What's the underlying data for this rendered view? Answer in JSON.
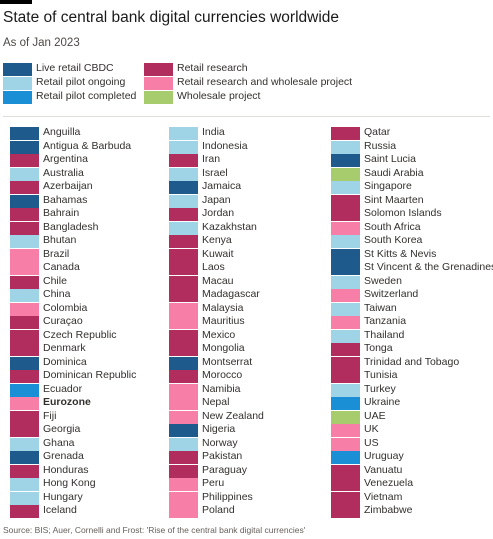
{
  "title": "State of central bank digital currencies worldwide",
  "subtitle": "As of Jan 2023",
  "source": "Source: BIS; Auer, Cornelli and Frost: 'Rise of the central bank digital currencies'",
  "colors": {
    "live": "#1f5a8c",
    "pilot_ongoing": "#9fd4e6",
    "pilot_completed": "#1a8fd6",
    "research": "#b02d5e",
    "research_wholesale": "#f77ea7",
    "wholesale": "#a6cc6e"
  },
  "legend": [
    {
      "label": "Live retail CBDC",
      "status": "live"
    },
    {
      "label": "Retail pilot ongoing",
      "status": "pilot_ongoing"
    },
    {
      "label": "Retail pilot completed",
      "status": "pilot_completed"
    },
    {
      "label": "Retail research",
      "status": "research"
    },
    {
      "label": "Retail research and wholesale project",
      "status": "research_wholesale"
    },
    {
      "label": "Wholesale project",
      "status": "wholesale"
    }
  ],
  "chart_data": {
    "type": "table",
    "title": "State of central bank digital currencies worldwide",
    "columns": [
      [
        {
          "name": "Anguilla",
          "status": "live"
        },
        {
          "name": "Antigua & Barbuda",
          "status": "live"
        },
        {
          "name": "Argentina",
          "status": "research"
        },
        {
          "name": "Australia",
          "status": "pilot_ongoing"
        },
        {
          "name": "Azerbaijan",
          "status": "research"
        },
        {
          "name": "Bahamas",
          "status": "live"
        },
        {
          "name": "Bahrain",
          "status": "research"
        },
        {
          "name": "Bangladesh",
          "status": "research"
        },
        {
          "name": "Bhutan",
          "status": "pilot_ongoing"
        },
        {
          "name": "Brazil",
          "status": "research_wholesale"
        },
        {
          "name": "Canada",
          "status": "research_wholesale"
        },
        {
          "name": "Chile",
          "status": "research"
        },
        {
          "name": "China",
          "status": "pilot_ongoing"
        },
        {
          "name": "Colombia",
          "status": "research_wholesale"
        },
        {
          "name": "Curaçao",
          "status": "research"
        },
        {
          "name": "Czech Republic",
          "status": "research"
        },
        {
          "name": "Denmark",
          "status": "research"
        },
        {
          "name": "Dominica",
          "status": "live"
        },
        {
          "name": "Dominican Republic",
          "status": "research"
        },
        {
          "name": "Ecuador",
          "status": "pilot_completed"
        },
        {
          "name": "Eurozone",
          "status": "research_wholesale",
          "bold": true
        },
        {
          "name": "Fiji",
          "status": "research"
        },
        {
          "name": "Georgia",
          "status": "research"
        },
        {
          "name": "Ghana",
          "status": "pilot_ongoing"
        },
        {
          "name": "Grenada",
          "status": "live"
        },
        {
          "name": "Honduras",
          "status": "research"
        },
        {
          "name": "Hong Kong",
          "status": "pilot_ongoing"
        },
        {
          "name": "Hungary",
          "status": "pilot_ongoing"
        },
        {
          "name": "Iceland",
          "status": "research"
        }
      ],
      [
        {
          "name": "India",
          "status": "pilot_ongoing"
        },
        {
          "name": "Indonesia",
          "status": "pilot_ongoing"
        },
        {
          "name": "Iran",
          "status": "research"
        },
        {
          "name": "Israel",
          "status": "pilot_ongoing"
        },
        {
          "name": "Jamaica",
          "status": "live"
        },
        {
          "name": "Japan",
          "status": "pilot_ongoing"
        },
        {
          "name": "Jordan",
          "status": "research"
        },
        {
          "name": "Kazakhstan",
          "status": "pilot_ongoing"
        },
        {
          "name": "Kenya",
          "status": "research"
        },
        {
          "name": "Kuwait",
          "status": "research"
        },
        {
          "name": "Laos",
          "status": "research"
        },
        {
          "name": "Macau",
          "status": "research"
        },
        {
          "name": "Madagascar",
          "status": "research"
        },
        {
          "name": "Malaysia",
          "status": "research_wholesale"
        },
        {
          "name": "Mauritius",
          "status": "research_wholesale"
        },
        {
          "name": "Mexico",
          "status": "research"
        },
        {
          "name": "Mongolia",
          "status": "research"
        },
        {
          "name": "Montserrat",
          "status": "live"
        },
        {
          "name": "Morocco",
          "status": "research"
        },
        {
          "name": "Namibia",
          "status": "research_wholesale"
        },
        {
          "name": "Nepal",
          "status": "research_wholesale"
        },
        {
          "name": "New Zealand",
          "status": "research_wholesale"
        },
        {
          "name": "Nigeria",
          "status": "live"
        },
        {
          "name": "Norway",
          "status": "pilot_ongoing"
        },
        {
          "name": "Pakistan",
          "status": "research"
        },
        {
          "name": "Paraguay",
          "status": "research"
        },
        {
          "name": "Peru",
          "status": "research_wholesale"
        },
        {
          "name": "Philippines",
          "status": "research_wholesale"
        },
        {
          "name": "Poland",
          "status": "research_wholesale"
        }
      ],
      [
        {
          "name": "Qatar",
          "status": "research"
        },
        {
          "name": "Russia",
          "status": "pilot_ongoing"
        },
        {
          "name": "Saint Lucia",
          "status": "live"
        },
        {
          "name": "Saudi Arabia",
          "status": "wholesale"
        },
        {
          "name": "Singapore",
          "status": "pilot_ongoing"
        },
        {
          "name": "Sint Maarten",
          "status": "research"
        },
        {
          "name": "Solomon Islands",
          "status": "research"
        },
        {
          "name": "South Africa",
          "status": "research_wholesale"
        },
        {
          "name": "South Korea",
          "status": "pilot_ongoing"
        },
        {
          "name": "St Kitts & Nevis",
          "status": "live"
        },
        {
          "name": "St Vincent & the Grenadines",
          "status": "live"
        },
        {
          "name": "Sweden",
          "status": "pilot_ongoing"
        },
        {
          "name": "Switzerland",
          "status": "research_wholesale"
        },
        {
          "name": "Taiwan",
          "status": "pilot_ongoing"
        },
        {
          "name": "Tanzania",
          "status": "research_wholesale"
        },
        {
          "name": "Thailand",
          "status": "pilot_ongoing"
        },
        {
          "name": "Tonga",
          "status": "research"
        },
        {
          "name": "Trinidad and Tobago",
          "status": "research"
        },
        {
          "name": "Tunisia",
          "status": "research"
        },
        {
          "name": "Turkey",
          "status": "pilot_ongoing"
        },
        {
          "name": "Ukraine",
          "status": "pilot_completed"
        },
        {
          "name": "UAE",
          "status": "wholesale"
        },
        {
          "name": "UK",
          "status": "research_wholesale"
        },
        {
          "name": "US",
          "status": "research_wholesale"
        },
        {
          "name": "Uruguay",
          "status": "pilot_completed"
        },
        {
          "name": "Vanuatu",
          "status": "research"
        },
        {
          "name": "Venezuela",
          "status": "research"
        },
        {
          "name": "Vietnam",
          "status": "research"
        },
        {
          "name": "Zimbabwe",
          "status": "research"
        }
      ]
    ]
  }
}
